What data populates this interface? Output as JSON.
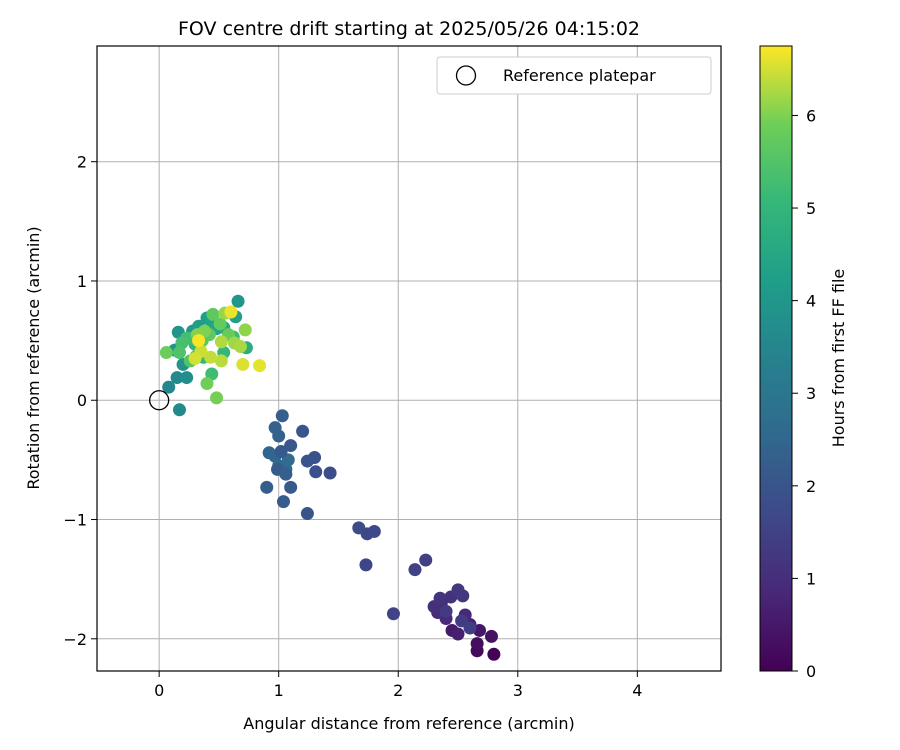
{
  "chart_data": {
    "type": "scatter",
    "title": "FOV centre drift starting at 2025/05/26 04:15:02",
    "xlabel": "Angular distance from reference (arcmin)",
    "ylabel": "Rotation from reference (arcmin)",
    "xlim": [
      -0.52,
      4.7
    ],
    "ylim": [
      -2.27,
      2.97
    ],
    "xticks": [
      0,
      1,
      2,
      3,
      4
    ],
    "yticks": [
      -2,
      -1,
      0,
      1,
      2
    ],
    "grid": true,
    "legend": {
      "position": "upper right",
      "entries": [
        "Reference platepar"
      ]
    },
    "reference_point": {
      "name": "Reference platepar",
      "x": 0,
      "y": 0
    },
    "colorbar": {
      "label": "Hours from first FF file",
      "colormap": "viridis",
      "range": [
        0,
        6.75
      ],
      "ticks": [
        0,
        1,
        2,
        3,
        4,
        5,
        6
      ]
    },
    "points": [
      {
        "x": 2.8,
        "y": -2.13,
        "t": 0.05
      },
      {
        "x": 2.66,
        "y": -2.1,
        "t": 0.15
      },
      {
        "x": 2.66,
        "y": -2.04,
        "t": 0.25
      },
      {
        "x": 2.78,
        "y": -1.98,
        "t": 0.35
      },
      {
        "x": 2.68,
        "y": -1.93,
        "t": 0.45
      },
      {
        "x": 2.45,
        "y": -1.93,
        "t": 0.55
      },
      {
        "x": 2.5,
        "y": -1.96,
        "t": 0.65
      },
      {
        "x": 2.6,
        "y": -1.88,
        "t": 0.75
      },
      {
        "x": 2.56,
        "y": -1.8,
        "t": 0.85
      },
      {
        "x": 2.4,
        "y": -1.83,
        "t": 0.9
      },
      {
        "x": 2.33,
        "y": -1.78,
        "t": 0.95
      },
      {
        "x": 2.36,
        "y": -1.7,
        "t": 1.0
      },
      {
        "x": 2.3,
        "y": -1.73,
        "t": 1.05
      },
      {
        "x": 2.44,
        "y": -1.65,
        "t": 1.1
      },
      {
        "x": 2.35,
        "y": -1.66,
        "t": 1.15
      },
      {
        "x": 2.5,
        "y": -1.59,
        "t": 1.2
      },
      {
        "x": 2.54,
        "y": -1.64,
        "t": 1.25
      },
      {
        "x": 2.4,
        "y": -1.77,
        "t": 1.3
      },
      {
        "x": 2.53,
        "y": -1.85,
        "t": 1.35
      },
      {
        "x": 2.6,
        "y": -1.91,
        "t": 1.4
      },
      {
        "x": 2.23,
        "y": -1.34,
        "t": 1.45
      },
      {
        "x": 2.14,
        "y": -1.42,
        "t": 1.5
      },
      {
        "x": 1.96,
        "y": -1.79,
        "t": 1.55
      },
      {
        "x": 1.73,
        "y": -1.38,
        "t": 1.6
      },
      {
        "x": 1.74,
        "y": -1.12,
        "t": 1.65
      },
      {
        "x": 1.8,
        "y": -1.1,
        "t": 1.7
      },
      {
        "x": 1.67,
        "y": -1.07,
        "t": 1.75
      },
      {
        "x": 1.43,
        "y": -0.61,
        "t": 1.8
      },
      {
        "x": 1.31,
        "y": -0.6,
        "t": 1.85
      },
      {
        "x": 1.3,
        "y": -0.48,
        "t": 1.9
      },
      {
        "x": 1.24,
        "y": -0.51,
        "t": 1.95
      },
      {
        "x": 1.24,
        "y": -0.95,
        "t": 2.0
      },
      {
        "x": 1.2,
        "y": -0.26,
        "t": 2.05
      },
      {
        "x": 1.1,
        "y": -0.38,
        "t": 2.1
      },
      {
        "x": 1.1,
        "y": -0.73,
        "t": 2.15
      },
      {
        "x": 1.04,
        "y": -0.85,
        "t": 2.2
      },
      {
        "x": 0.9,
        "y": -0.73,
        "t": 2.25
      },
      {
        "x": 1.03,
        "y": -0.13,
        "t": 2.3
      },
      {
        "x": 0.97,
        "y": -0.23,
        "t": 2.35
      },
      {
        "x": 1.0,
        "y": -0.3,
        "t": 2.4
      },
      {
        "x": 0.92,
        "y": -0.44,
        "t": 2.45
      },
      {
        "x": 0.97,
        "y": -0.47,
        "t": 2.5
      },
      {
        "x": 1.0,
        "y": -0.55,
        "t": 2.55
      },
      {
        "x": 1.06,
        "y": -0.58,
        "t": 2.6
      },
      {
        "x": 1.08,
        "y": -0.5,
        "t": 2.65
      },
      {
        "x": 0.99,
        "y": -0.58,
        "t": 2.2
      },
      {
        "x": 1.06,
        "y": -0.62,
        "t": 2.3
      },
      {
        "x": 1.02,
        "y": -0.43,
        "t": 2.15
      },
      {
        "x": 0.17,
        "y": -0.08,
        "t": 3.6
      },
      {
        "x": 0.08,
        "y": 0.11,
        "t": 3.5
      },
      {
        "x": 0.15,
        "y": 0.19,
        "t": 3.55
      },
      {
        "x": 0.23,
        "y": 0.19,
        "t": 3.7
      },
      {
        "x": 0.2,
        "y": 0.3,
        "t": 3.85
      },
      {
        "x": 0.13,
        "y": 0.42,
        "t": 3.9
      },
      {
        "x": 0.16,
        "y": 0.57,
        "t": 3.95
      },
      {
        "x": 0.28,
        "y": 0.58,
        "t": 4.05
      },
      {
        "x": 0.33,
        "y": 0.62,
        "t": 4.15
      },
      {
        "x": 0.4,
        "y": 0.69,
        "t": 4.25
      },
      {
        "x": 0.44,
        "y": 0.65,
        "t": 4.35
      },
      {
        "x": 0.48,
        "y": 0.6,
        "t": 4.45
      },
      {
        "x": 0.54,
        "y": 0.61,
        "t": 4.55
      },
      {
        "x": 0.64,
        "y": 0.7,
        "t": 4.3
      },
      {
        "x": 0.66,
        "y": 0.83,
        "t": 4.0
      },
      {
        "x": 0.44,
        "y": 0.22,
        "t": 5.2
      },
      {
        "x": 0.34,
        "y": 0.42,
        "t": 4.8
      },
      {
        "x": 0.3,
        "y": 0.47,
        "t": 4.9
      },
      {
        "x": 0.37,
        "y": 0.36,
        "t": 5.0
      },
      {
        "x": 0.54,
        "y": 0.4,
        "t": 5.05
      },
      {
        "x": 0.62,
        "y": 0.53,
        "t": 5.15
      },
      {
        "x": 0.27,
        "y": 0.52,
        "t": 5.25
      },
      {
        "x": 0.23,
        "y": 0.52,
        "t": 5.3
      },
      {
        "x": 0.19,
        "y": 0.48,
        "t": 5.35
      },
      {
        "x": 0.17,
        "y": 0.4,
        "t": 5.45
      },
      {
        "x": 0.26,
        "y": 0.33,
        "t": 5.5
      },
      {
        "x": 0.31,
        "y": 0.37,
        "t": 5.55
      },
      {
        "x": 0.36,
        "y": 0.5,
        "t": 5.6
      },
      {
        "x": 0.42,
        "y": 0.55,
        "t": 5.65
      },
      {
        "x": 0.45,
        "y": 0.72,
        "t": 5.7
      },
      {
        "x": 0.51,
        "y": 0.64,
        "t": 5.75
      },
      {
        "x": 0.58,
        "y": 0.55,
        "t": 5.8
      },
      {
        "x": 0.73,
        "y": 0.44,
        "t": 4.7
      },
      {
        "x": 0.06,
        "y": 0.4,
        "t": 5.85
      },
      {
        "x": 0.4,
        "y": 0.14,
        "t": 5.9
      },
      {
        "x": 0.48,
        "y": 0.02,
        "t": 5.95
      },
      {
        "x": 0.38,
        "y": 0.58,
        "t": 6.0
      },
      {
        "x": 0.32,
        "y": 0.55,
        "t": 6.05
      },
      {
        "x": 0.72,
        "y": 0.59,
        "t": 6.1
      },
      {
        "x": 0.55,
        "y": 0.73,
        "t": 6.15
      },
      {
        "x": 0.63,
        "y": 0.48,
        "t": 6.2
      },
      {
        "x": 0.68,
        "y": 0.45,
        "t": 6.25
      },
      {
        "x": 0.52,
        "y": 0.49,
        "t": 6.3
      },
      {
        "x": 0.52,
        "y": 0.33,
        "t": 6.35
      },
      {
        "x": 0.43,
        "y": 0.36,
        "t": 6.4
      },
      {
        "x": 0.35,
        "y": 0.41,
        "t": 6.45
      },
      {
        "x": 0.3,
        "y": 0.35,
        "t": 6.5
      },
      {
        "x": 0.7,
        "y": 0.3,
        "t": 6.55
      },
      {
        "x": 0.84,
        "y": 0.29,
        "t": 6.6
      },
      {
        "x": 0.6,
        "y": 0.74,
        "t": 6.65
      },
      {
        "x": 0.33,
        "y": 0.5,
        "t": 6.7
      }
    ]
  }
}
